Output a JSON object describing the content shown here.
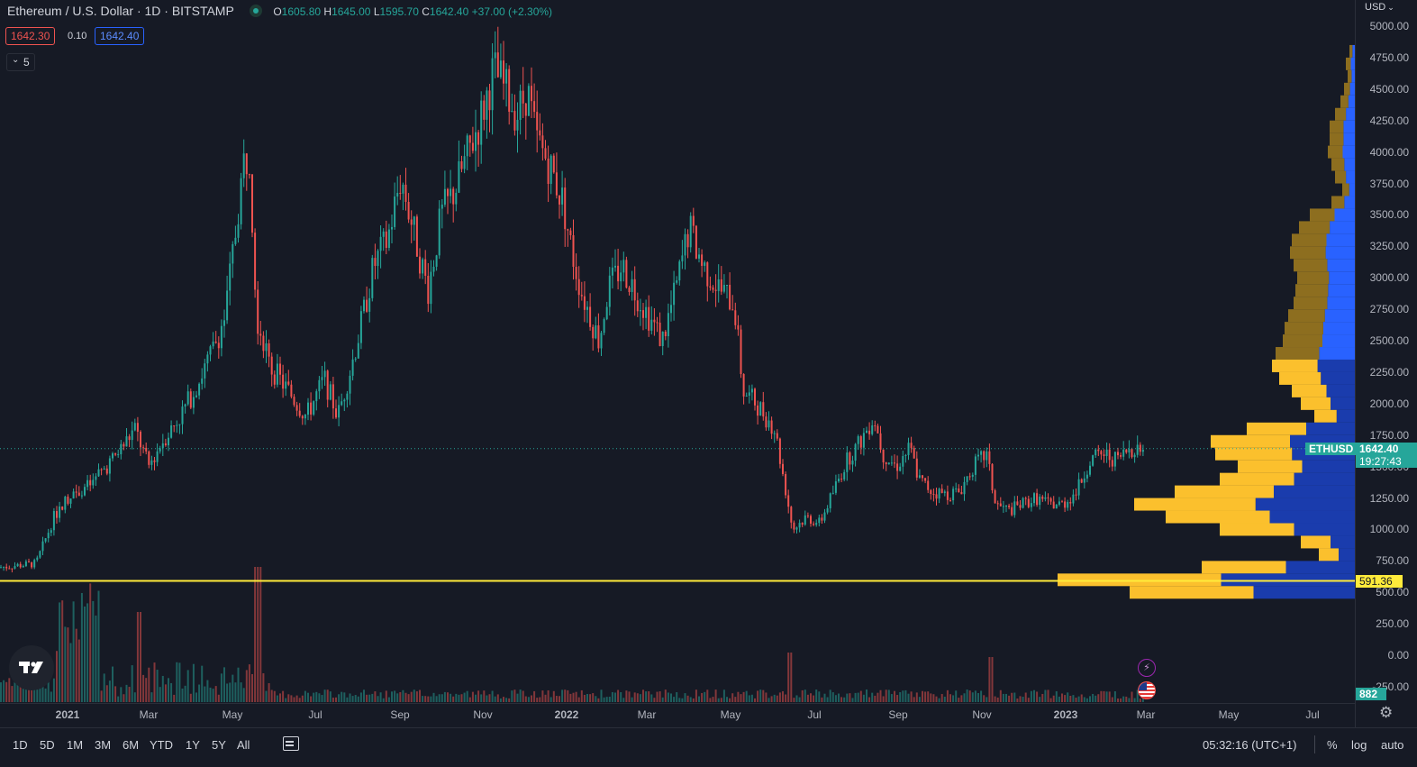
{
  "legend": {
    "symbol": "Ethereum / U.S. Dollar · 1D · BITSTAMP",
    "o_label": "O",
    "o_value": "1605.80",
    "h_label": "H",
    "h_value": "1645.00",
    "l_label": "L",
    "l_value": "1595.70",
    "c_label": "C",
    "c_value": "1642.40",
    "change": "+37.00 (+2.30%)",
    "sell_price": "1642.30",
    "spread": "0.10",
    "buy_price": "1642.40",
    "indicators_toggle": "5"
  },
  "price_axis": {
    "currency": "USD",
    "ticks": [
      "5000.00",
      "4750.00",
      "4500.00",
      "4250.00",
      "4000.00",
      "3750.00",
      "3500.00",
      "3250.00",
      "3000.00",
      "2750.00",
      "2500.00",
      "2250.00",
      "2000.00",
      "1750.00",
      "1500.00",
      "1250.00",
      "1000.00",
      "750.00",
      "500.00",
      "250.00",
      "0.00",
      "-250.00"
    ],
    "symbol_tag": "ETHUSD",
    "last_price": "1642.40",
    "countdown": "19:27:43",
    "line_price": "591.36",
    "volume_tag": "882"
  },
  "time_axis": {
    "labels": [
      "2021",
      "Mar",
      "May",
      "Jul",
      "Sep",
      "Nov",
      "2022",
      "Mar",
      "May",
      "Jul",
      "Sep",
      "Nov",
      "2023",
      "Mar",
      "May",
      "Jul"
    ]
  },
  "bottom_bar": {
    "ranges": [
      "1D",
      "5D",
      "1M",
      "3M",
      "6M",
      "YTD",
      "1Y",
      "5Y",
      "All"
    ],
    "time": "05:32:16 (UTC+1)",
    "percent": "%",
    "log": "log",
    "auto": "auto"
  },
  "colors": {
    "background": "#161a25",
    "up": "#26a69a",
    "down": "#ef5350",
    "horizontal_line": "#ffeb3b",
    "vp_up": "#2962ff",
    "vp_down": "#fbc02d"
  },
  "icons": {
    "logo": "tradingview-logo-icon",
    "settings": "gear-icon",
    "date_range": "calendar-range-icon",
    "lightning": "lightning-icon",
    "flag": "us-flag-icon"
  },
  "chart_data": {
    "type": "candlestick",
    "title": "Ethereum / U.S. Dollar · 1D · BITSTAMP",
    "ylim": [
      -250,
      5000
    ],
    "x": [
      "2020-12",
      "2021-01",
      "2021-02",
      "2021-03",
      "2021-04",
      "2021-05",
      "2021-06",
      "2021-07",
      "2021-08",
      "2021-09",
      "2021-10",
      "2021-11",
      "2021-12",
      "2022-01",
      "2022-02",
      "2022-03",
      "2022-04",
      "2022-05",
      "2022-06",
      "2022-07",
      "2022-08",
      "2022-09",
      "2022-10",
      "2022-11",
      "2022-12",
      "2023-01",
      "2023-02"
    ],
    "close_approx": [
      740,
      1310,
      1420,
      1920,
      2770,
      2700,
      2270,
      2540,
      3430,
      3000,
      4290,
      4630,
      3680,
      2700,
      2920,
      3280,
      2730,
      1940,
      1070,
      1680,
      1550,
      1330,
      1570,
      1290,
      1200,
      1580,
      1642
    ],
    "horizontal_line": 591.36,
    "last_price": 1642.4
  }
}
